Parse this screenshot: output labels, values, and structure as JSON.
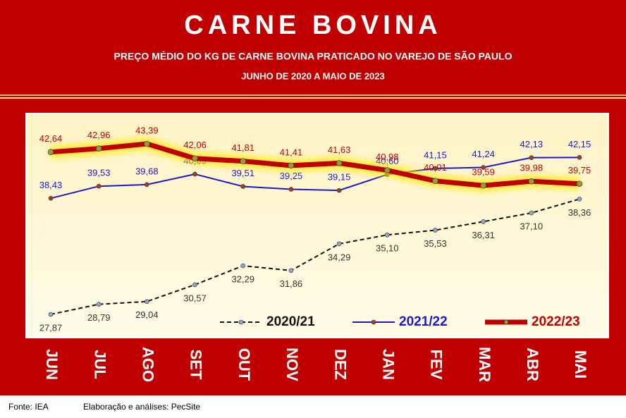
{
  "chart_data": {
    "type": "line",
    "title": "CARNE BOVINA",
    "subtitle": "PREÇO MÉDIO DO KG DE CARNE BOVINA PRATICADO NO VAREJO DE SÃO PAULO",
    "period": "JUNHO DE 2020 A MAIO DE 2023",
    "categories": [
      "JUN",
      "JUL",
      "AGO",
      "SET",
      "OUT",
      "NOV",
      "DEZ",
      "JAN",
      "FEV",
      "MAR",
      "ABR",
      "MAI"
    ],
    "series": [
      {
        "name": "2020/21",
        "color": "#111111",
        "dashed": true,
        "width": 2,
        "values": [
          27.87,
          28.79,
          29.04,
          30.57,
          32.29,
          31.86,
          34.29,
          35.1,
          35.53,
          36.31,
          37.1,
          38.36
        ],
        "value_labels": [
          "27,87",
          "28,79",
          "29,04",
          "30,57",
          "32,29",
          "31,86",
          "34,29",
          "35,10",
          "35,53",
          "36,31",
          "37,10",
          "38,36"
        ]
      },
      {
        "name": "2021/22",
        "color": "#1a1acc",
        "dashed": false,
        "width": 2,
        "values": [
          38.43,
          39.53,
          39.68,
          40.63,
          39.51,
          39.25,
          39.15,
          40.6,
          41.15,
          41.24,
          42.13,
          42.15
        ],
        "value_labels": [
          "38,43",
          "39,53",
          "39,68",
          "40,63",
          "39,51",
          "39,25",
          "39,15",
          "40,60",
          "41,15",
          "41,24",
          "42,13",
          "42,15"
        ]
      },
      {
        "name": "2022/23",
        "color": "#c00000",
        "dashed": false,
        "width": 7,
        "values": [
          42.64,
          42.96,
          43.39,
          42.06,
          41.81,
          41.41,
          41.63,
          40.98,
          40.01,
          39.59,
          39.98,
          39.75
        ],
        "value_labels": [
          "42,64",
          "42,96",
          "43,39",
          "42,06",
          "41,81",
          "41,41",
          "41,63",
          "40,98",
          "40,01",
          "39,59",
          "39,98",
          "39,75"
        ]
      }
    ],
    "source": "Fonte: IEA",
    "credit": "Elaboração e análises: PecSite"
  }
}
